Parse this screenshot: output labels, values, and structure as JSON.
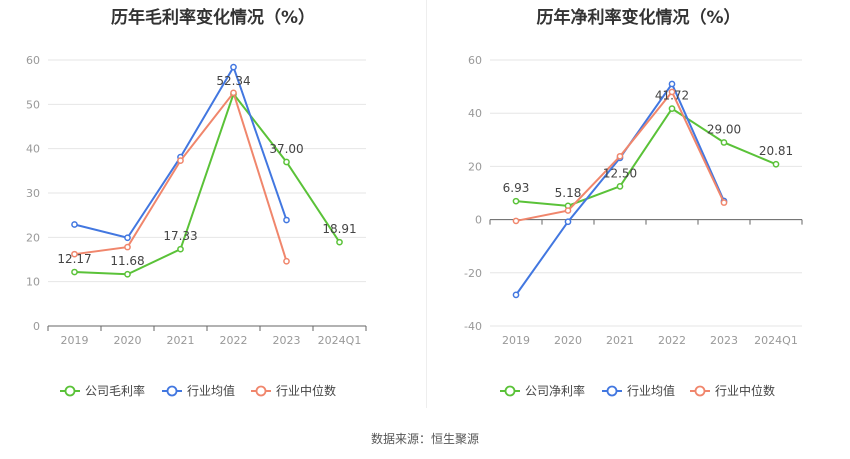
{
  "source_note": "数据来源：恒生聚源",
  "chart_data": [
    {
      "type": "line",
      "title": "历年毛利率变化情况（%）",
      "categories": [
        "2019",
        "2020",
        "2021",
        "2022",
        "2023",
        "2024Q1"
      ],
      "ylim": [
        0,
        60
      ],
      "yticks": [
        0,
        10,
        20,
        30,
        40,
        50,
        60
      ],
      "grid": true,
      "legend_position": "bottom",
      "series": [
        {
          "name": "公司毛利率",
          "color": "#5ac238",
          "labeled": true,
          "values": [
            12.17,
            11.68,
            17.33,
            52.34,
            37.0,
            18.91
          ],
          "labels": [
            "12.17",
            "11.68",
            "17.33",
            "52.34",
            "37.00",
            "18.91"
          ]
        },
        {
          "name": "行业均值",
          "color": "#4277e0",
          "labeled": false,
          "values": [
            22.9,
            19.9,
            38.1,
            58.4,
            23.9,
            null
          ]
        },
        {
          "name": "行业中位数",
          "color": "#f0866c",
          "labeled": false,
          "values": [
            16.2,
            17.8,
            37.3,
            52.6,
            14.6,
            null
          ]
        }
      ]
    },
    {
      "type": "line",
      "title": "历年净利率变化情况（%）",
      "categories": [
        "2019",
        "2020",
        "2021",
        "2022",
        "2023",
        "2024Q1"
      ],
      "ylim": [
        -40,
        60
      ],
      "yticks": [
        -40,
        -20,
        0,
        20,
        40,
        60
      ],
      "grid": true,
      "legend_position": "bottom",
      "series": [
        {
          "name": "公司净利率",
          "color": "#5ac238",
          "labeled": true,
          "values": [
            6.93,
            5.18,
            12.5,
            41.72,
            29.0,
            20.81
          ],
          "labels": [
            "6.93",
            "5.18",
            "12.50",
            "41.72",
            "29.00",
            "20.81"
          ]
        },
        {
          "name": "行业均值",
          "color": "#4277e0",
          "labeled": false,
          "values": [
            -28.3,
            -0.8,
            23.2,
            51.0,
            7.0,
            null
          ]
        },
        {
          "name": "行业中位数",
          "color": "#f0866c",
          "labeled": false,
          "values": [
            -0.5,
            3.4,
            23.8,
            48.0,
            6.4,
            null
          ]
        }
      ]
    }
  ]
}
